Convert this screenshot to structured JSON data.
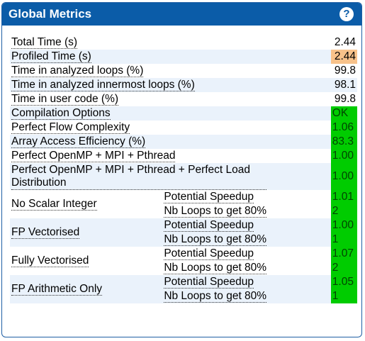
{
  "header": {
    "title": "Global Metrics",
    "help_icon": "?"
  },
  "colors": {
    "header": "#0b5ca8",
    "alt_row": "#eaf2fb",
    "good": "#00cc00",
    "warn": "#f8c28a"
  },
  "rows": {
    "total_time": {
      "label": "Total Time (s)",
      "value": "2.44"
    },
    "profiled_time": {
      "label": "Profiled Time (s)",
      "value": "2.44"
    },
    "time_analyzed_loops": {
      "label": "Time in analyzed loops (%)",
      "value": "99.8"
    },
    "time_innermost_loops": {
      "label": "Time in analyzed innermost loops (%)",
      "value": "98.1"
    },
    "time_user_code": {
      "label": "Time in user code (%)",
      "value": "99.8"
    },
    "compilation_options": {
      "label": "Compilation Options",
      "value": "OK"
    },
    "perfect_flow": {
      "label": "Perfect Flow Complexity",
      "value": "1.06"
    },
    "array_access": {
      "label": "Array Access Efficiency (%)",
      "value": "83.3"
    },
    "perfect_openmp": {
      "label": "Perfect OpenMP + MPI + Pthread",
      "value": "1.00"
    },
    "perfect_openmp_load": {
      "label": "Perfect OpenMP + MPI + Pthread + Perfect Load Distribution",
      "value": "1.00"
    }
  },
  "sublabels": {
    "speedup": "Potential Speedup",
    "loops": "Nb Loops to get 80%"
  },
  "groups": {
    "no_scalar_integer": {
      "label": "No Scalar Integer",
      "speedup": "1.01",
      "loops": "2"
    },
    "fp_vectorised": {
      "label": "FP Vectorised",
      "speedup": "1.00",
      "loops": "1"
    },
    "fully_vectorised": {
      "label": "Fully Vectorised",
      "speedup": "1.07",
      "loops": "2"
    },
    "fp_arithmetic_only": {
      "label": "FP Arithmetic Only",
      "speedup": "1.05",
      "loops": "1"
    }
  }
}
